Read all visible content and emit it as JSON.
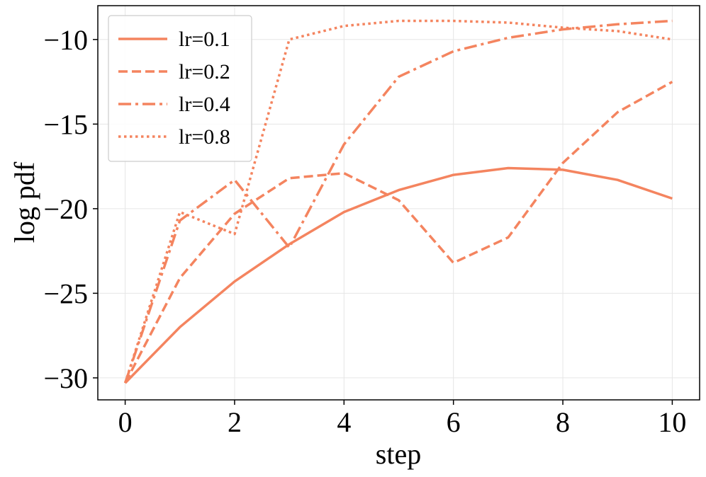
{
  "chart_data": {
    "type": "line",
    "title": "",
    "xlabel": "step",
    "ylabel": "log pdf",
    "xlim": [
      -0.5,
      10.5
    ],
    "ylim": [
      -31.3,
      -8.0
    ],
    "xticks": [
      0,
      2,
      4,
      6,
      8,
      10
    ],
    "yticks": [
      -30,
      -25,
      -20,
      -15,
      -10
    ],
    "xtick_labels": [
      "0",
      "2",
      "4",
      "6",
      "8",
      "10"
    ],
    "ytick_labels": [
      "−30",
      "−25",
      "−20",
      "−15",
      "−10"
    ],
    "grid": true,
    "legend_position": "top-left",
    "color": "#F4845F",
    "x": [
      0,
      1,
      2,
      3,
      4,
      5,
      6,
      7,
      8,
      9,
      10
    ],
    "series": [
      {
        "name": "lr=0.1",
        "style": "solid",
        "values": [
          -30.3,
          -27.0,
          -24.3,
          -22.1,
          -20.2,
          -18.9,
          -18.0,
          -17.6,
          -17.7,
          -18.3,
          -19.4
        ]
      },
      {
        "name": "lr=0.2",
        "style": "dashed",
        "values": [
          -30.3,
          -24.1,
          -20.3,
          -18.2,
          -17.9,
          -19.5,
          -23.2,
          -21.7,
          -17.3,
          -14.3,
          -12.5
        ]
      },
      {
        "name": "lr=0.4",
        "style": "dashdot",
        "values": [
          -30.3,
          -20.7,
          -18.3,
          -22.3,
          -16.2,
          -12.2,
          -10.7,
          -9.9,
          -9.4,
          -9.1,
          -8.9
        ]
      },
      {
        "name": "lr=0.8",
        "style": "dotted",
        "values": [
          -30.3,
          -20.2,
          -21.5,
          -10.0,
          -9.2,
          -8.9,
          -8.9,
          -9.0,
          -9.3,
          -9.5,
          -10.0
        ]
      }
    ]
  }
}
